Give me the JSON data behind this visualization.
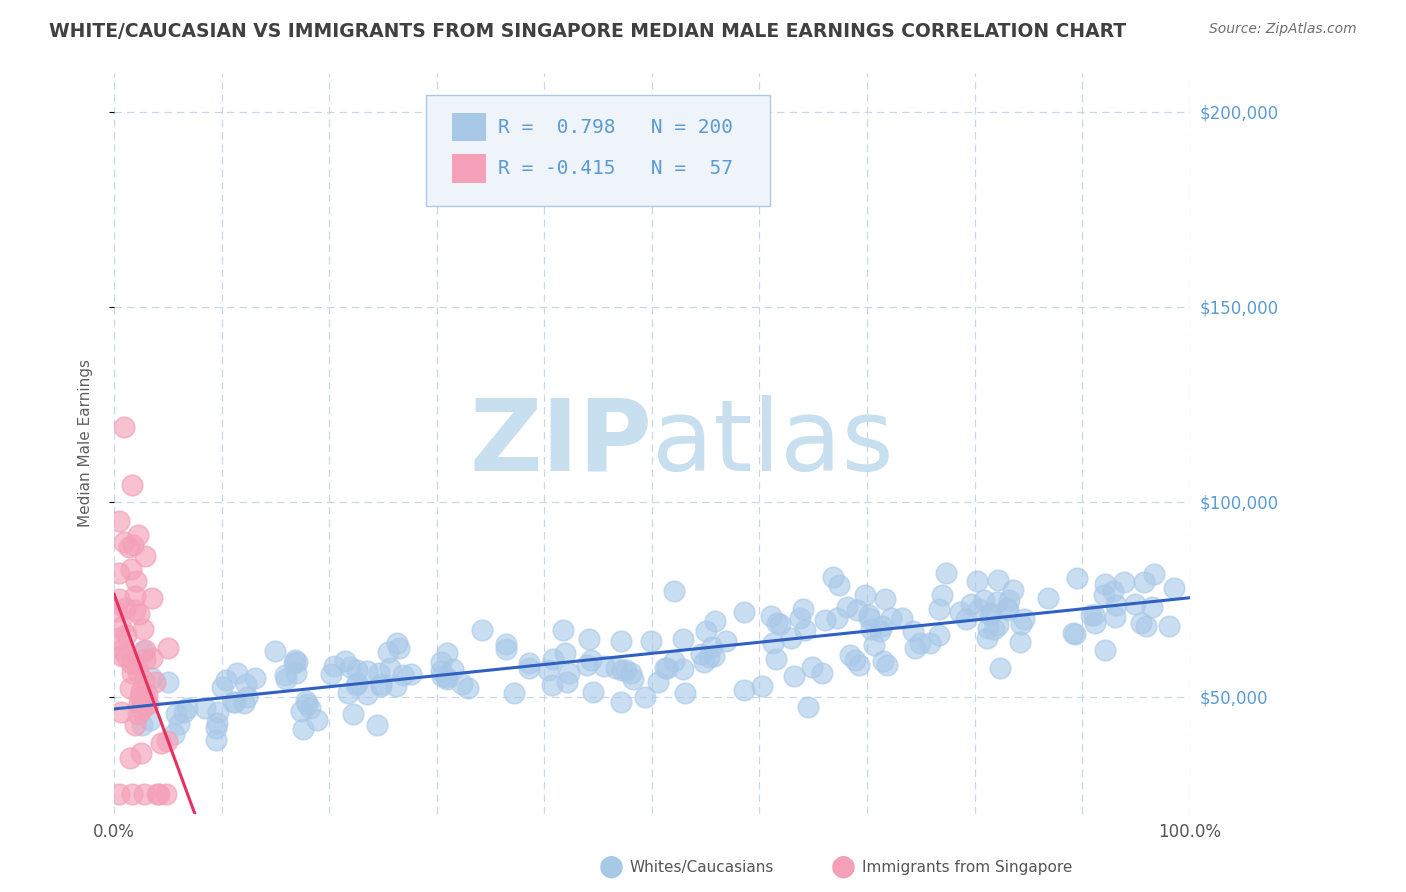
{
  "title": "WHITE/CAUCASIAN VS IMMIGRANTS FROM SINGAPORE MEDIAN MALE EARNINGS CORRELATION CHART",
  "source": "Source: ZipAtlas.com",
  "ylabel": "Median Male Earnings",
  "xlim": [
    0.0,
    1.0
  ],
  "ylim": [
    20000,
    210000
  ],
  "yticks": [
    50000,
    100000,
    150000,
    200000
  ],
  "xticks": [
    0.0,
    0.1,
    0.2,
    0.3,
    0.4,
    0.5,
    0.6,
    0.7,
    0.8,
    0.9,
    1.0
  ],
  "xtick_labels": [
    "0.0%",
    "",
    "",
    "",
    "",
    "",
    "",
    "",
    "",
    "",
    "100.0%"
  ],
  "blue_R": 0.798,
  "blue_N": 200,
  "pink_R": -0.415,
  "pink_N": 57,
  "blue_marker_color": "#a8c8e8",
  "pink_marker_color": "#f4a0b8",
  "blue_line_color": "#3060c0",
  "pink_line_color": "#e83060",
  "background_color": "#ffffff",
  "grid_color": "#c8d8e8",
  "watermark_color": "#c8dff0",
  "title_color": "#404040",
  "right_ytick_color": "#5b9bd5",
  "legend_box_facecolor": "#eef4fa",
  "legend_box_edgecolor": "#b0c8e0",
  "blue_legend_label": "Whites/Caucasians",
  "pink_legend_label": "Immigrants from Singapore",
  "seed": 99
}
